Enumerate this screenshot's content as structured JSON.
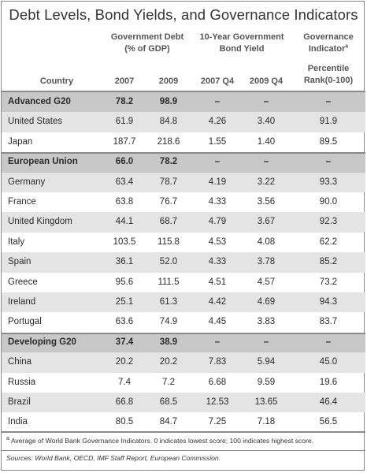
{
  "title": "Debt Levels, Bond Yields, and Governance Indicators",
  "group_headers": {
    "debt_line1": "Government Debt",
    "debt_line2": "(% of GDP)",
    "bond_line1": "10-Year Government",
    "bond_line2": "Bond Yield",
    "gov_line1": "Governance",
    "gov_line2": "Indicator",
    "gov_footnote_mark": "a"
  },
  "column_headers": {
    "country": "Country",
    "debt_2007": "2007",
    "debt_2009": "2009",
    "yield_2007": "2007 Q4",
    "yield_2009": "2009 Q4",
    "percentile_line1": "Percentile",
    "percentile_line2": "Rank(0-100)"
  },
  "rows": [
    {
      "name": "Advanced G20",
      "section": true,
      "debt_2007": "78.2",
      "debt_2009": "98.9",
      "yield_2007": "–",
      "yield_2009": "–",
      "gov": "–"
    },
    {
      "name": "United States",
      "section": false,
      "debt_2007": "61.9",
      "debt_2009": "84.8",
      "yield_2007": "4.26",
      "yield_2009": "3.40",
      "gov": "91.9"
    },
    {
      "name": "Japan",
      "section": false,
      "debt_2007": "187.7",
      "debt_2009": "218.6",
      "yield_2007": "1.55",
      "yield_2009": "1.40",
      "gov": "89.5"
    },
    {
      "name": "European Union",
      "section": true,
      "debt_2007": "66.0",
      "debt_2009": "78.2",
      "yield_2007": "–",
      "yield_2009": "–",
      "gov": "–"
    },
    {
      "name": "Germany",
      "section": false,
      "debt_2007": "63.4",
      "debt_2009": "78.7",
      "yield_2007": "4.19",
      "yield_2009": "3.22",
      "gov": "93.3"
    },
    {
      "name": "France",
      "section": false,
      "debt_2007": "63.8",
      "debt_2009": "76.7",
      "yield_2007": "4.33",
      "yield_2009": "3.56",
      "gov": "90.0"
    },
    {
      "name": "United Kingdom",
      "section": false,
      "debt_2007": "44.1",
      "debt_2009": "68.7",
      "yield_2007": "4.79",
      "yield_2009": "3.67",
      "gov": "92.3"
    },
    {
      "name": "Italy",
      "section": false,
      "debt_2007": "103.5",
      "debt_2009": "115.8",
      "yield_2007": "4.53",
      "yield_2009": "4.08",
      "gov": "62.2"
    },
    {
      "name": "Spain",
      "section": false,
      "debt_2007": "36.1",
      "debt_2009": "52.0",
      "yield_2007": "4.33",
      "yield_2009": "3.78",
      "gov": "85.2"
    },
    {
      "name": "Greece",
      "section": false,
      "debt_2007": "95.6",
      "debt_2009": "111.5",
      "yield_2007": "4.51",
      "yield_2009": "4.57",
      "gov": "73.2"
    },
    {
      "name": "Ireland",
      "section": false,
      "debt_2007": "25.1",
      "debt_2009": "61.3",
      "yield_2007": "4.42",
      "yield_2009": "4.69",
      "gov": "94.3"
    },
    {
      "name": "Portugal",
      "section": false,
      "debt_2007": "63.6",
      "debt_2009": "74.9",
      "yield_2007": "4.45",
      "yield_2009": "3.83",
      "gov": "83.7"
    },
    {
      "name": "Developing G20",
      "section": true,
      "debt_2007": "37.4",
      "debt_2009": "38.9",
      "yield_2007": "–",
      "yield_2009": "–",
      "gov": "–"
    },
    {
      "name": "China",
      "section": false,
      "debt_2007": "20.2",
      "debt_2009": "20.2",
      "yield_2007": "7.83",
      "yield_2009": "5.94",
      "gov": "45.0"
    },
    {
      "name": "Russia",
      "section": false,
      "debt_2007": "7.4",
      "debt_2009": "7.2",
      "yield_2007": "6.68",
      "yield_2009": "9.59",
      "gov": "19.6"
    },
    {
      "name": "Brazil",
      "section": false,
      "debt_2007": "66.8",
      "debt_2009": "68.5",
      "yield_2007": "12.53",
      "yield_2009": "13.65",
      "gov": "46.4"
    },
    {
      "name": "India",
      "section": false,
      "debt_2007": "80.5",
      "debt_2009": "84.7",
      "yield_2007": "7.25",
      "yield_2009": "7.18",
      "gov": "56.5"
    }
  ],
  "footnote": {
    "mark": "a",
    "text": " Average of World Bank Governance Indicators. 0 indicates lowest score; 100 indicates highest score."
  },
  "sources": "Sources: World Bank, OECD, IMF Staff Report, European Commission."
}
